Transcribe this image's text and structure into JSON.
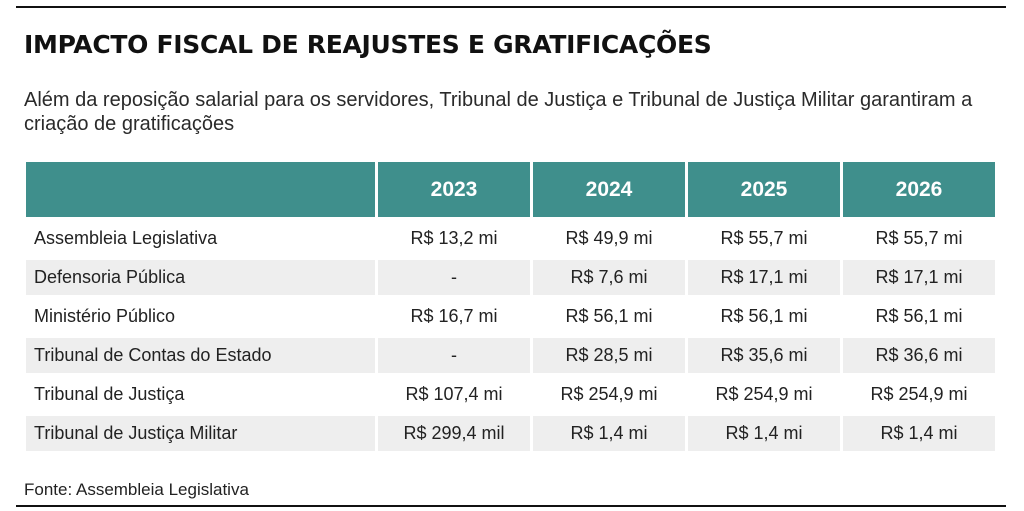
{
  "chart_data": {
    "type": "table",
    "title": "IMPACTO FISCAL DE REAJUSTES E GRATIFICAÇÕES",
    "subtitle": "Além da reposição salarial para os servidores, Tribunal de Justiça e Tribunal de Justiça Militar garantiram a criação de gratificações",
    "columns": [
      "",
      "2023",
      "2024",
      "2025",
      "2026"
    ],
    "rows": [
      {
        "label": "Assembleia Legislativa",
        "values": [
          "R$ 13,2 mi",
          "R$ 49,9 mi",
          "R$ 55,7 mi",
          "R$ 55,7 mi"
        ]
      },
      {
        "label": "Defensoria Pública",
        "values": [
          "-",
          "R$ 7,6 mi",
          "R$ 17,1 mi",
          "R$ 17,1 mi"
        ]
      },
      {
        "label": "Ministério Público",
        "values": [
          "R$ 16,7 mi",
          "R$ 56,1 mi",
          "R$ 56,1 mi",
          "R$ 56,1 mi"
        ]
      },
      {
        "label": "Tribunal de Contas do Estado",
        "values": [
          "-",
          "R$ 28,5 mi",
          "R$ 35,6 mi",
          "R$ 36,6 mi"
        ]
      },
      {
        "label": "Tribunal de Justiça",
        "values": [
          "R$ 107,4 mi",
          "R$ 254,9 mi",
          "R$ 254,9 mi",
          "R$ 254,9 mi"
        ]
      },
      {
        "label": "Tribunal de Justiça Militar",
        "values": [
          "R$ 299,4 mil",
          "R$ 1,4 mi",
          "R$ 1,4 mi",
          "R$ 1,4 mi"
        ]
      }
    ],
    "source": "Fonte: Assembleia Legislativa"
  },
  "colors": {
    "header_bg": "#3f8f8c",
    "header_text": "#ffffff",
    "stripe_bg": "#eeeeee"
  }
}
